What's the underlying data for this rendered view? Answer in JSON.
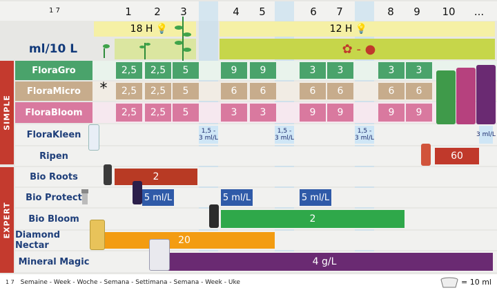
{
  "scale_label": "1     7",
  "weeks": [
    "1",
    "2",
    "3",
    "4",
    "5",
    "6",
    "7",
    "8",
    "9",
    "10",
    "..."
  ],
  "light": {
    "h18": "18 H",
    "h12": "12 H"
  },
  "dose_unit": "ml/10 L",
  "flower_fruit": "-",
  "asterisk": "*",
  "sections": {
    "simple": "SIMPLE",
    "expert": "EXPERT"
  },
  "rows": {
    "floragro": {
      "label": "FloraGro",
      "values": [
        "2,5",
        "2,5",
        "5",
        "9",
        "9",
        "3",
        "3",
        "3",
        "3"
      ]
    },
    "floramicro": {
      "label": "FloraMicro",
      "values": [
        "2,5",
        "2,5",
        "5",
        "6",
        "6",
        "6",
        "6",
        "6",
        "6"
      ]
    },
    "florabloom": {
      "label": "FloraBloom",
      "values": [
        "2,5",
        "2,5",
        "5",
        "3",
        "3",
        "9",
        "9",
        "9",
        "9"
      ]
    },
    "florakleen": {
      "label": "FloraKleen",
      "values": [
        "1,5 -\n3 ml/L",
        "1,5 -\n3 ml/L",
        "1,5 -\n3 ml/L",
        "3 ml/L"
      ]
    },
    "ripen": {
      "label": "Ripen",
      "value": "60"
    },
    "bioroots": {
      "label": "Bio Roots",
      "value": "2"
    },
    "bioprotect": {
      "label": "Bio Protect",
      "values": [
        "5 ml/L",
        "5 ml/L",
        "5 ml/L"
      ]
    },
    "biobloom": {
      "label": "Bio Bloom",
      "value": "2"
    },
    "diamondnectar": {
      "label": "Diamond Nectar",
      "value": "20"
    },
    "mineralmagic": {
      "label": "Mineral Magic",
      "value": "4 g/L"
    }
  },
  "product_labels": [
    "FloraGro",
    "FloraMicro",
    "FloraBloom"
  ],
  "footer": {
    "scale": "1     7",
    "weeks_text": "Semaine - Week - Woche - Semana - Settimana - Semana - Week - Uke",
    "cap_text": "= 10 ml"
  },
  "colors": {
    "green": "#4aa36b",
    "tan": "#c7ac8c",
    "pink": "#d9799f",
    "blue": "#2f5aa8",
    "red": "#c0392b",
    "darkred": "#b83a24",
    "purple": "#6a2a72",
    "lime": "#c6d64a",
    "orange": "#f39c12",
    "section_red": "#c43a2e"
  }
}
